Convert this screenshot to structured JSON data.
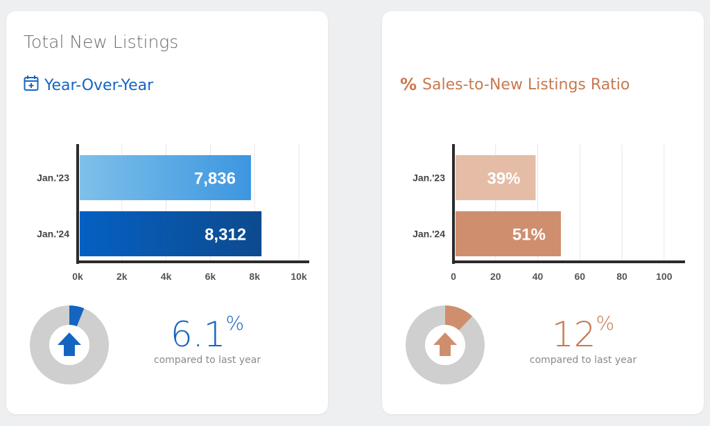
{
  "left_card": {
    "title": "Total New Listings",
    "subtitle": "Year-Over-Year",
    "icon": "calendar-plus-icon",
    "accent": "#1565c0",
    "change_value": "6.1",
    "change_unit": "%",
    "change_caption": "compared to last year",
    "change_fraction": 0.061,
    "change_direction": "up"
  },
  "right_card": {
    "title": "",
    "subtitle": "Sales-to-New Listings Ratio",
    "icon": "percent-icon",
    "icon_glyph": "%",
    "accent": "#c7794f",
    "change_value": "12",
    "change_unit": "%",
    "change_caption": "compared to last year",
    "change_fraction": 0.12,
    "change_direction": "up"
  },
  "chart_data": [
    {
      "type": "bar",
      "orientation": "horizontal",
      "categories": [
        "Jan.'23",
        "Jan.'24"
      ],
      "values": [
        7836,
        8312
      ],
      "value_labels": [
        "7,836",
        "8,312"
      ],
      "xlim": [
        0,
        10000
      ],
      "ticks": [
        0,
        2000,
        4000,
        6000,
        8000,
        10000
      ],
      "tick_labels": [
        "0k",
        "2k",
        "4k",
        "6k",
        "8k",
        "10k"
      ],
      "grid": true,
      "colors": [
        [
          "#7ec0ea",
          "#3c96e0"
        ],
        [
          "#0560c2",
          "#0d4a8e"
        ]
      ]
    },
    {
      "type": "bar",
      "orientation": "horizontal",
      "categories": [
        "Jan.'23",
        "Jan.'24"
      ],
      "values": [
        39,
        51
      ],
      "value_labels": [
        "39%",
        "51%"
      ],
      "xlim": [
        0,
        105
      ],
      "ticks": [
        0,
        20,
        40,
        60,
        80,
        100
      ],
      "tick_labels": [
        "0",
        "20",
        "40",
        "60",
        "80",
        "100"
      ],
      "grid": true,
      "colors": [
        [
          "#e5bca6",
          "#e5bca6"
        ],
        [
          "#cf8e6e",
          "#cf8e6e"
        ]
      ]
    }
  ]
}
